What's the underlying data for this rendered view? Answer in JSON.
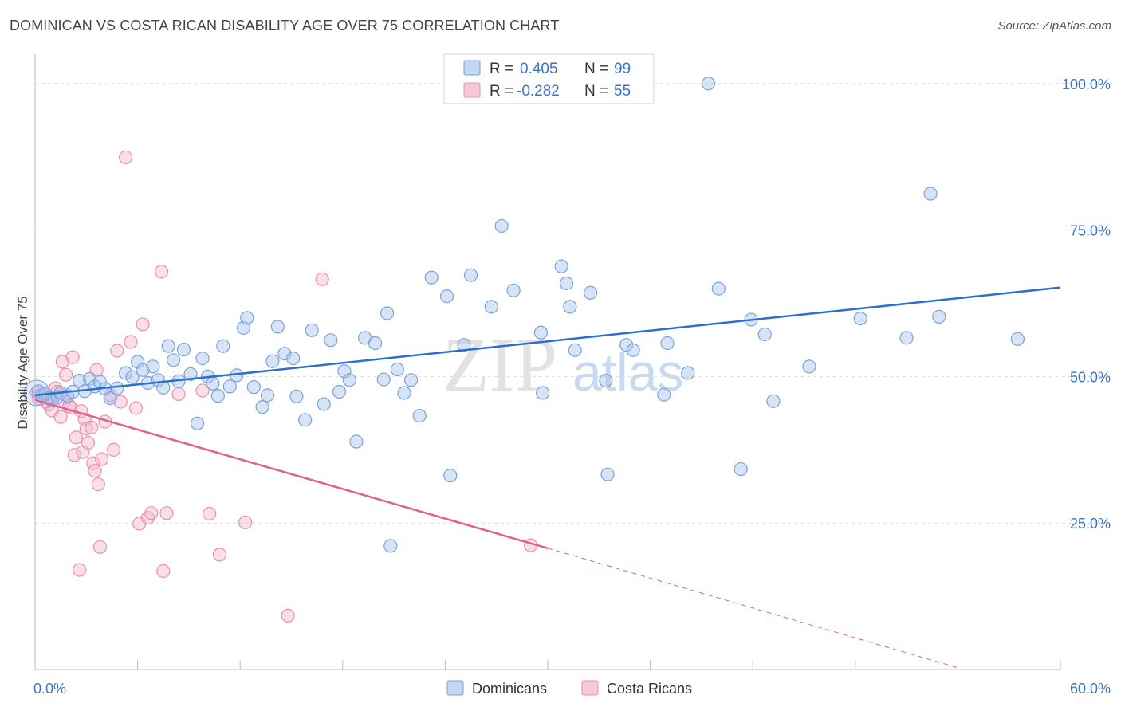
{
  "title": "DOMINICAN VS COSTA RICAN DISABILITY AGE OVER 75 CORRELATION CHART",
  "source": "Source: ZipAtlas.com",
  "watermark": {
    "zip": "ZIP",
    "atlas": "atlas"
  },
  "legend_top": [
    {
      "r_label": "R =",
      "r_value": "0.405",
      "n_label": "N =",
      "n_value": "99"
    },
    {
      "r_label": "R =",
      "r_value": "-0.282",
      "n_label": "N =",
      "n_value": "55"
    }
  ],
  "legend_bottom": [
    "Dominicans",
    "Costa Ricans"
  ],
  "colors": {
    "blue_fill": "#a7c4ec",
    "blue_stroke": "#7aa3dc",
    "blue_line": "#2b6fcf",
    "pink_fill": "#f5b8cb",
    "pink_stroke": "#ec8fae",
    "pink_line": "#e0608f",
    "axis_label": "#3a75c8",
    "grid": "#dcdcdc"
  },
  "chart_data": {
    "type": "scatter",
    "title": "DOMINICAN VS COSTA RICAN DISABILITY AGE OVER 75 CORRELATION CHART",
    "xlabel": "",
    "ylabel": "Disability Age Over 75",
    "xlim": [
      0,
      60
    ],
    "ylim": [
      0,
      105
    ],
    "x_tick_labels": [
      "0.0%",
      "60.0%"
    ],
    "y_ticks": [
      25,
      50,
      75,
      100
    ],
    "y_tick_labels": [
      "25.0%",
      "50.0%",
      "75.0%",
      "100.0%"
    ],
    "series": [
      {
        "name": "Dominicans",
        "R": 0.405,
        "N": 99,
        "trend": {
          "x0": 0,
          "y0": 46.8,
          "x1": 60,
          "y1": 65.2
        },
        "points": [
          [
            0.2,
            47.5
          ],
          [
            0.4,
            46.8
          ],
          [
            0.6,
            47.0
          ],
          [
            0.8,
            46.3
          ],
          [
            1.0,
            45.9
          ],
          [
            1.3,
            46.5
          ],
          [
            1.5,
            47.2
          ],
          [
            1.9,
            46.7
          ],
          [
            2.2,
            47.4
          ],
          [
            2.6,
            49.3
          ],
          [
            2.9,
            47.5
          ],
          [
            3.2,
            49.6
          ],
          [
            3.5,
            48.3
          ],
          [
            3.8,
            49.1
          ],
          [
            4.1,
            47.9
          ],
          [
            4.4,
            46.3
          ],
          [
            4.8,
            48.0
          ],
          [
            5.3,
            50.6
          ],
          [
            5.7,
            49.9
          ],
          [
            6.0,
            52.5
          ],
          [
            6.3,
            51.1
          ],
          [
            6.6,
            48.9
          ],
          [
            6.9,
            51.7
          ],
          [
            7.2,
            49.4
          ],
          [
            7.5,
            48.1
          ],
          [
            7.8,
            55.2
          ],
          [
            8.1,
            52.8
          ],
          [
            8.4,
            49.2
          ],
          [
            8.7,
            54.6
          ],
          [
            9.1,
            50.4
          ],
          [
            9.5,
            42.0
          ],
          [
            9.8,
            53.1
          ],
          [
            10.1,
            50.0
          ],
          [
            10.4,
            48.8
          ],
          [
            10.7,
            46.7
          ],
          [
            11.0,
            55.2
          ],
          [
            11.4,
            48.3
          ],
          [
            11.8,
            50.2
          ],
          [
            12.2,
            58.3
          ],
          [
            12.4,
            60.0
          ],
          [
            12.8,
            48.2
          ],
          [
            13.3,
            44.8
          ],
          [
            13.6,
            46.8
          ],
          [
            13.9,
            52.6
          ],
          [
            14.2,
            58.5
          ],
          [
            14.6,
            53.9
          ],
          [
            15.1,
            53.1
          ],
          [
            15.3,
            46.6
          ],
          [
            15.8,
            42.6
          ],
          [
            16.2,
            57.9
          ],
          [
            16.9,
            45.3
          ],
          [
            17.3,
            56.2
          ],
          [
            17.8,
            47.4
          ],
          [
            18.1,
            50.9
          ],
          [
            18.4,
            49.4
          ],
          [
            18.8,
            38.9
          ],
          [
            19.3,
            56.6
          ],
          [
            19.9,
            55.7
          ],
          [
            20.4,
            49.5
          ],
          [
            20.6,
            60.8
          ],
          [
            20.8,
            21.1
          ],
          [
            21.2,
            51.2
          ],
          [
            21.6,
            47.2
          ],
          [
            22.0,
            49.4
          ],
          [
            22.5,
            43.3
          ],
          [
            23.2,
            66.9
          ],
          [
            24.1,
            63.7
          ],
          [
            24.3,
            33.1
          ],
          [
            25.1,
            55.4
          ],
          [
            25.5,
            67.3
          ],
          [
            26.7,
            61.9
          ],
          [
            27.3,
            75.7
          ],
          [
            28.0,
            64.7
          ],
          [
            29.6,
            57.5
          ],
          [
            29.7,
            47.2
          ],
          [
            30.8,
            68.8
          ],
          [
            31.1,
            65.9
          ],
          [
            31.3,
            61.9
          ],
          [
            31.6,
            54.5
          ],
          [
            32.5,
            64.3
          ],
          [
            33.4,
            49.3
          ],
          [
            33.5,
            33.3
          ],
          [
            34.6,
            55.4
          ],
          [
            35.0,
            54.5
          ],
          [
            36.8,
            46.9
          ],
          [
            37.0,
            55.7
          ],
          [
            38.2,
            50.6
          ],
          [
            40.0,
            65.0
          ],
          [
            41.3,
            34.2
          ],
          [
            41.9,
            59.7
          ],
          [
            42.7,
            57.2
          ],
          [
            43.2,
            45.8
          ],
          [
            45.3,
            51.7
          ],
          [
            48.3,
            59.9
          ],
          [
            51.0,
            56.6
          ],
          [
            52.4,
            81.2
          ],
          [
            52.9,
            60.2
          ],
          [
            57.5,
            56.4
          ],
          [
            39.4,
            100.0
          ]
        ]
      },
      {
        "name": "Costa Ricans",
        "R": -0.282,
        "N": 55,
        "trend": {
          "x0": 0,
          "y0": 46.0,
          "x1": 30,
          "y1": 20.7,
          "dash_x1": 54,
          "dash_y1": 0.3
        },
        "points": [
          [
            0.1,
            47.3
          ],
          [
            0.2,
            46.3
          ],
          [
            0.3,
            46.8
          ],
          [
            0.5,
            47.1
          ],
          [
            0.7,
            45.7
          ],
          [
            0.8,
            45.2
          ],
          [
            0.9,
            46.4
          ],
          [
            1.0,
            44.2
          ],
          [
            1.2,
            48.0
          ],
          [
            1.3,
            47.4
          ],
          [
            1.5,
            43.1
          ],
          [
            1.6,
            52.5
          ],
          [
            1.7,
            45.8
          ],
          [
            1.8,
            50.3
          ],
          [
            2.0,
            45.0
          ],
          [
            2.1,
            44.7
          ],
          [
            2.2,
            53.3
          ],
          [
            2.3,
            36.6
          ],
          [
            2.4,
            39.6
          ],
          [
            2.6,
            17.0
          ],
          [
            2.7,
            44.1
          ],
          [
            2.8,
            37.1
          ],
          [
            2.9,
            42.7
          ],
          [
            3.0,
            41.1
          ],
          [
            3.1,
            38.7
          ],
          [
            3.3,
            41.3
          ],
          [
            3.4,
            35.2
          ],
          [
            3.5,
            33.9
          ],
          [
            3.6,
            51.1
          ],
          [
            3.7,
            31.6
          ],
          [
            3.8,
            20.9
          ],
          [
            3.9,
            35.9
          ],
          [
            4.1,
            42.3
          ],
          [
            4.4,
            46.8
          ],
          [
            4.6,
            37.5
          ],
          [
            4.8,
            54.4
          ],
          [
            5.0,
            45.7
          ],
          [
            5.3,
            87.4
          ],
          [
            5.6,
            55.9
          ],
          [
            5.9,
            44.6
          ],
          [
            6.1,
            24.9
          ],
          [
            6.3,
            58.9
          ],
          [
            6.6,
            25.9
          ],
          [
            6.8,
            26.7
          ],
          [
            7.4,
            67.9
          ],
          [
            7.5,
            16.8
          ],
          [
            7.7,
            26.7
          ],
          [
            8.4,
            47.0
          ],
          [
            9.8,
            47.6
          ],
          [
            10.2,
            26.6
          ],
          [
            10.8,
            19.6
          ],
          [
            12.3,
            25.1
          ],
          [
            14.8,
            9.2
          ],
          [
            16.8,
            66.6
          ],
          [
            29.0,
            21.2
          ]
        ]
      }
    ]
  }
}
